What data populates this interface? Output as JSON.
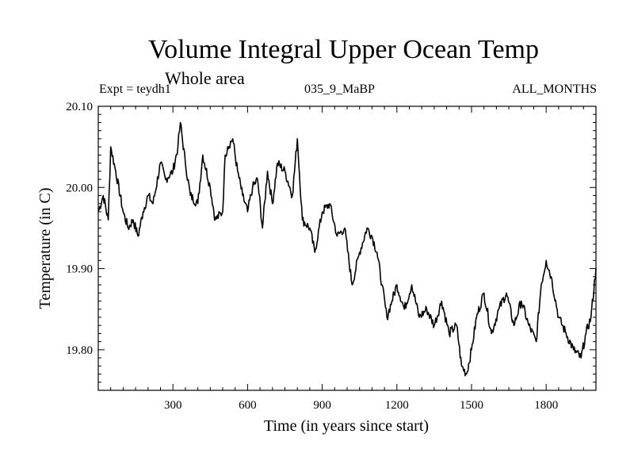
{
  "chart_data": {
    "type": "line",
    "title": "Volume Integral Upper Ocean Temp",
    "subtitle": "Whole area",
    "experiment": "Expt = teydh1",
    "period": "035_9_MaBP",
    "months": "ALL_MONTHS",
    "xlabel": "Time (in years since start)",
    "ylabel": "Temperature (in C)",
    "xlim": [
      0,
      2000
    ],
    "ylim": [
      19.75,
      20.1
    ],
    "xticks": [
      300,
      600,
      900,
      1200,
      1500,
      1800
    ],
    "xtick_labels": [
      "300",
      "600",
      "900",
      "1200",
      "1500",
      "1800"
    ],
    "yticks": [
      19.8,
      19.9,
      20.0,
      20.1
    ],
    "ytick_labels": [
      "19.80",
      "19.90",
      "20.00",
      "20.10"
    ],
    "grid": false,
    "series": [
      {
        "name": "teydh1",
        "x": [
          0,
          20,
          40,
          50,
          70,
          100,
          120,
          140,
          160,
          180,
          200,
          220,
          250,
          270,
          300,
          320,
          330,
          350,
          370,
          400,
          420,
          450,
          470,
          500,
          510,
          520,
          540,
          560,
          580,
          600,
          620,
          640,
          660,
          680,
          700,
          720,
          750,
          780,
          800,
          820,
          850,
          870,
          900,
          930,
          960,
          990,
          1020,
          1050,
          1080,
          1100,
          1120,
          1140,
          1160,
          1180,
          1200,
          1230,
          1260,
          1290,
          1320,
          1350,
          1380,
          1410,
          1440,
          1460,
          1480,
          1500,
          1520,
          1550,
          1580,
          1610,
          1640,
          1670,
          1700,
          1730,
          1760,
          1780,
          1800,
          1820,
          1850,
          1880,
          1910,
          1940,
          1960,
          1980,
          2000
        ],
        "y": [
          19.97,
          19.99,
          19.96,
          20.05,
          20.02,
          19.97,
          19.95,
          19.96,
          19.94,
          19.97,
          19.99,
          19.98,
          20.03,
          20.01,
          20.02,
          20.05,
          20.08,
          20.03,
          19.99,
          19.98,
          20.04,
          20.0,
          19.96,
          19.97,
          20.04,
          20.05,
          20.06,
          20.02,
          19.99,
          19.97,
          20.0,
          20.01,
          19.95,
          20.02,
          19.98,
          20.03,
          20.02,
          19.99,
          20.06,
          19.96,
          19.95,
          19.92,
          19.97,
          19.98,
          19.94,
          19.95,
          19.88,
          19.92,
          19.95,
          19.94,
          19.92,
          19.88,
          19.84,
          19.86,
          19.88,
          19.85,
          19.88,
          19.84,
          19.85,
          19.83,
          19.86,
          19.82,
          19.83,
          19.78,
          19.77,
          19.8,
          19.84,
          19.87,
          19.82,
          19.85,
          19.87,
          19.83,
          19.86,
          19.83,
          19.81,
          19.88,
          19.91,
          19.89,
          19.84,
          19.82,
          19.8,
          19.79,
          19.82,
          19.84,
          19.9
        ]
      }
    ]
  }
}
